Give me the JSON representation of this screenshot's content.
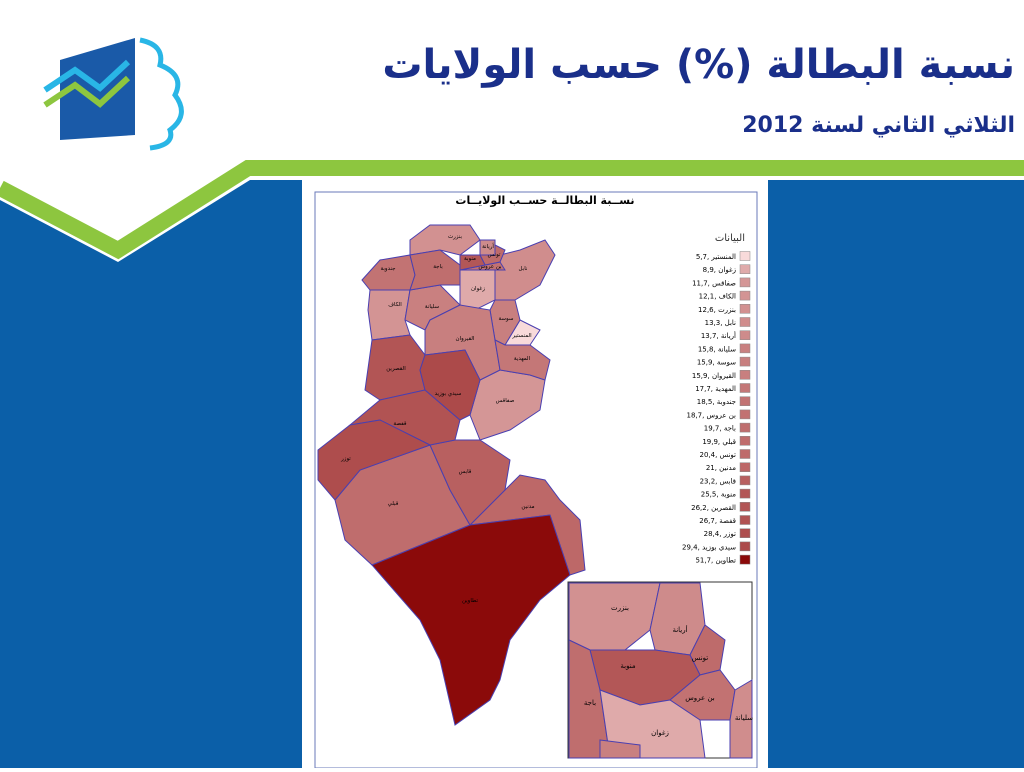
{
  "header": {
    "title": "نسبة البطالة (%) حسب الولايات",
    "subtitle": "الثلاثي الثاني لسنة 2012"
  },
  "map": {
    "title": "نســبة البطالــة حســب الولايــات",
    "legend_title": "البيانات",
    "color_low": "#f8dada",
    "color_high": "#8b0a0a",
    "items": [
      {
        "label": "5,7, المنستير",
        "value": 5.7
      },
      {
        "label": "8,9, زغوان",
        "value": 8.9
      },
      {
        "label": "11,7, صفاقس",
        "value": 11.7
      },
      {
        "label": "12,1, الكاف",
        "value": 12.1
      },
      {
        "label": "12,6, بنزرت",
        "value": 12.6
      },
      {
        "label": "13,3, نابل",
        "value": 13.3
      },
      {
        "label": "13,7, أريانة",
        "value": 13.7
      },
      {
        "label": "15,8, سليانة",
        "value": 15.8
      },
      {
        "label": "15,9, سوسة",
        "value": 15.9
      },
      {
        "label": "15,9, القيروان",
        "value": 15.9
      },
      {
        "label": "17,7, المهدية",
        "value": 17.7
      },
      {
        "label": "18,5, جندوبة",
        "value": 18.5
      },
      {
        "label": "18,7, بن عروس",
        "value": 18.7
      },
      {
        "label": "19,7, باجة",
        "value": 19.7
      },
      {
        "label": "19,9, قبلي",
        "value": 19.9
      },
      {
        "label": "20,4, تونس",
        "value": 20.4
      },
      {
        "label": "21, مدنين",
        "value": 21
      },
      {
        "label": "23,2, قابس",
        "value": 23.2
      },
      {
        "label": "25,5, منوبة",
        "value": 25.5
      },
      {
        "label": "26,2, القصرين",
        "value": 26.2
      },
      {
        "label": "26,7, قفصة",
        "value": 26.7
      },
      {
        "label": "28,4, توزر",
        "value": 28.4
      },
      {
        "label": "29,4, سيدي بوزيد",
        "value": 29.4
      },
      {
        "label": "51,7, تطاوين",
        "value": 51.7
      }
    ],
    "labels": [
      "المنستير",
      "زغوان",
      "صفاقس",
      "الكاف",
      "بنزرت",
      "نابل",
      "أريانة",
      "سليانة",
      "سوسة",
      "القيروان",
      "المهدية",
      "جندوبة",
      "بن عروس",
      "باجة",
      "قبلي",
      "تونس",
      "مدنين",
      "قابس",
      "منوبة",
      "القصرين",
      "قفصة",
      "توزر",
      "سيدي بوزيد",
      "تطاوين"
    ],
    "inset_labels": [
      "بنزرت",
      "أريانة",
      "تونس",
      "منوبة",
      "بن عروس",
      "باجة",
      "زغوان",
      "سليانة"
    ]
  }
}
